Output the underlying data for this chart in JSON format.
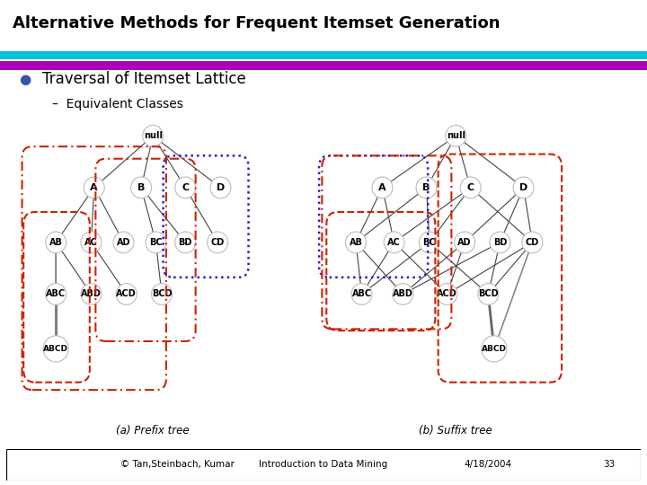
{
  "title": "Alternative Methods for Frequent Itemset Generation",
  "subtitle_bullet": "Traversal of Itemset Lattice",
  "subtitle_sub": "Equivalent Classes",
  "footer_left": "© Tan,Steinbach, Kumar",
  "footer_mid": "Introduction to Data Mining",
  "footer_date": "4/18/2004",
  "footer_num": "33",
  "caption_a": "(a) Prefix tree",
  "caption_b": "(b) Suffix tree",
  "bg_color": "#ffffff",
  "title_color": "#000000",
  "bar1_color": "#00b0c8",
  "bar2_color": "#9900aa",
  "bullet_color": "#3355aa",
  "dash_color": "#555555",
  "node_ec": "#bbbbbb",
  "node_fc": "#ffffff",
  "edge_color": "#444444",
  "red_color": "#cc2200",
  "blue_color": "#2222cc"
}
